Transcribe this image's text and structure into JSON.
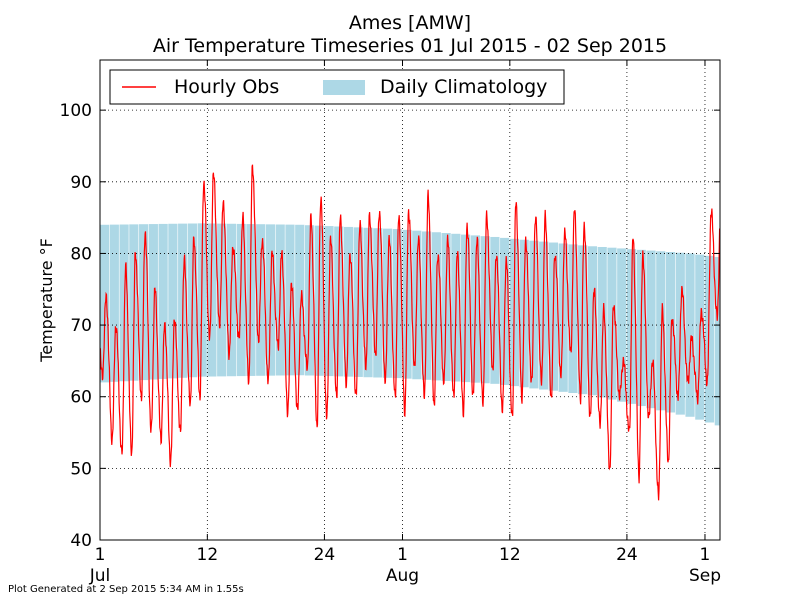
{
  "chart_data": {
    "type": "line",
    "title": "Ames [AMW]",
    "subtitle": "Air Temperature Timeseries 01 Jul 2015 - 02 Sep 2015",
    "ylabel": "Temperature °F",
    "xlabel": "",
    "ylim": [
      40,
      107
    ],
    "yticks": [
      40,
      50,
      60,
      70,
      80,
      90,
      100
    ],
    "xlim": [
      "2015-07-01",
      "2015-09-02"
    ],
    "xticks": [
      {
        "date": "2015-07-01",
        "label": "1",
        "sublabel": "Jul"
      },
      {
        "date": "2015-07-12",
        "label": "12",
        "sublabel": ""
      },
      {
        "date": "2015-07-24",
        "label": "24",
        "sublabel": ""
      },
      {
        "date": "2015-08-01",
        "label": "1",
        "sublabel": "Aug"
      },
      {
        "date": "2015-08-12",
        "label": "12",
        "sublabel": ""
      },
      {
        "date": "2015-08-24",
        "label": "24",
        "sublabel": ""
      },
      {
        "date": "2015-09-01",
        "label": "1",
        "sublabel": "Sep"
      }
    ],
    "grid": true,
    "legend_position": "top",
    "legend": [
      {
        "label": "Hourly Obs",
        "kind": "line",
        "color": "#ff0000"
      },
      {
        "label": "Daily Climatology",
        "kind": "band",
        "color": "#add8e6"
      }
    ],
    "series": [
      {
        "name": "Daily Climatology",
        "kind": "band",
        "color": "#add8e6",
        "dates": [
          "2015-07-01",
          "2015-07-11",
          "2015-07-21",
          "2015-07-31",
          "2015-08-10",
          "2015-08-20",
          "2015-08-30",
          "2015-09-02"
        ],
        "low": [
          62,
          62.8,
          63,
          62.6,
          61.8,
          60.2,
          57.2,
          56
        ],
        "high": [
          84,
          84.2,
          84,
          83.4,
          82.3,
          81,
          80,
          79.5
        ]
      },
      {
        "name": "Hourly Obs",
        "kind": "line",
        "color": "#ff0000",
        "daily_dates": [
          "2015-07-01",
          "2015-07-02",
          "2015-07-03",
          "2015-07-04",
          "2015-07-05",
          "2015-07-06",
          "2015-07-07",
          "2015-07-08",
          "2015-07-09",
          "2015-07-10",
          "2015-07-11",
          "2015-07-12",
          "2015-07-13",
          "2015-07-14",
          "2015-07-15",
          "2015-07-16",
          "2015-07-17",
          "2015-07-18",
          "2015-07-19",
          "2015-07-20",
          "2015-07-21",
          "2015-07-22",
          "2015-07-23",
          "2015-07-24",
          "2015-07-25",
          "2015-07-26",
          "2015-07-27",
          "2015-07-28",
          "2015-07-29",
          "2015-07-30",
          "2015-07-31",
          "2015-08-01",
          "2015-08-02",
          "2015-08-03",
          "2015-08-04",
          "2015-08-05",
          "2015-08-06",
          "2015-08-07",
          "2015-08-08",
          "2015-08-09",
          "2015-08-10",
          "2015-08-11",
          "2015-08-12",
          "2015-08-13",
          "2015-08-14",
          "2015-08-15",
          "2015-08-16",
          "2015-08-17",
          "2015-08-18",
          "2015-08-19",
          "2015-08-20",
          "2015-08-21",
          "2015-08-22",
          "2015-08-23",
          "2015-08-24",
          "2015-08-25",
          "2015-08-26",
          "2015-08-27",
          "2015-08-28",
          "2015-08-29",
          "2015-08-30",
          "2015-08-31",
          "2015-09-01",
          "2015-09-02"
        ],
        "daily_low": [
          63,
          54,
          52,
          52,
          60,
          55,
          54,
          51,
          55,
          59,
          60,
          68,
          70,
          66,
          68,
          62,
          68,
          62,
          67,
          58,
          58,
          64,
          56,
          57,
          60,
          62,
          60,
          64,
          66,
          62,
          60,
          58,
          64,
          60,
          59,
          62,
          60,
          58,
          60,
          59,
          64,
          58,
          57,
          60,
          62,
          62,
          60,
          63,
          66,
          60,
          57,
          56,
          50,
          60,
          55,
          49,
          57,
          46,
          51,
          60,
          62,
          60,
          62,
          71
        ],
        "daily_high": [
          74,
          70,
          78,
          80,
          83,
          75,
          70,
          71,
          79,
          82,
          90,
          91,
          87,
          81,
          85,
          92,
          82,
          80,
          80,
          76,
          74,
          85,
          88,
          82,
          85,
          80,
          84,
          85,
          86,
          82,
          85,
          86,
          82,
          88,
          80,
          82,
          80,
          84,
          82,
          85,
          80,
          79,
          87,
          82,
          85,
          85,
          80,
          83,
          86,
          84,
          75,
          72,
          73,
          65,
          82,
          80,
          65,
          72,
          71,
          75,
          68,
          72,
          86,
          87
        ]
      }
    ],
    "annotations": [
      "Plot Generated at 2 Sep 2015 5:34 AM in 1.55s"
    ]
  }
}
